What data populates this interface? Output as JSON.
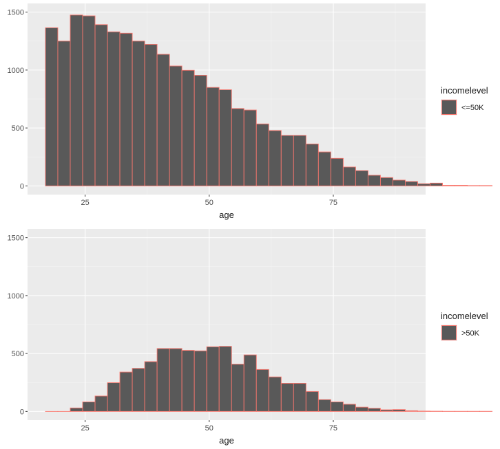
{
  "colors": {
    "panel_background": "#ebebeb",
    "bar_fill": "#595959",
    "bar_outline": "#f8766d",
    "grid": "#ffffff"
  },
  "chart_data": [
    {
      "type": "bar",
      "subtype": "histogram",
      "bin_width": 2.5,
      "x_start": 17,
      "xlabel": "age",
      "ylabel": "",
      "xlim": [
        13.4,
        93.6
      ],
      "ylim": [
        -75,
        1575
      ],
      "x_ticks": [
        25,
        50,
        75
      ],
      "x_tick_labels": [
        "25",
        "50",
        "75"
      ],
      "y_ticks": [
        0,
        500,
        1000,
        1500
      ],
      "y_tick_labels": [
        "0",
        "500",
        "1000",
        "1500"
      ],
      "grid": true,
      "legend": {
        "title": "incomelevel",
        "position": "right",
        "entries": [
          "<=50K"
        ]
      },
      "values": [
        1365,
        1250,
        1475,
        1468,
        1392,
        1330,
        1318,
        1250,
        1222,
        1136,
        1035,
        998,
        955,
        850,
        830,
        668,
        655,
        535,
        478,
        436,
        436,
        362,
        293,
        238,
        163,
        132,
        92,
        72,
        50,
        38,
        19,
        24,
        5,
        5,
        3,
        3
      ]
    },
    {
      "type": "bar",
      "subtype": "histogram",
      "bin_width": 2.5,
      "x_start": 17,
      "xlabel": "age",
      "ylabel": "",
      "xlim": [
        13.4,
        93.6
      ],
      "ylim": [
        -75,
        1575
      ],
      "x_ticks": [
        25,
        50,
        75
      ],
      "x_tick_labels": [
        "25",
        "50",
        "75"
      ],
      "y_ticks": [
        0,
        500,
        1000,
        1500
      ],
      "y_tick_labels": [
        "0",
        "500",
        "1000",
        "1500"
      ],
      "grid": true,
      "legend": {
        "title": "incomelevel",
        "position": "right",
        "entries": [
          ">50K"
        ]
      },
      "values": [
        0,
        0,
        30,
        82,
        133,
        248,
        340,
        372,
        430,
        543,
        543,
        527,
        523,
        558,
        562,
        408,
        488,
        362,
        298,
        243,
        243,
        172,
        102,
        82,
        62,
        37,
        27,
        14,
        16,
        6,
        3,
        2,
        1,
        1,
        1,
        1
      ]
    }
  ]
}
